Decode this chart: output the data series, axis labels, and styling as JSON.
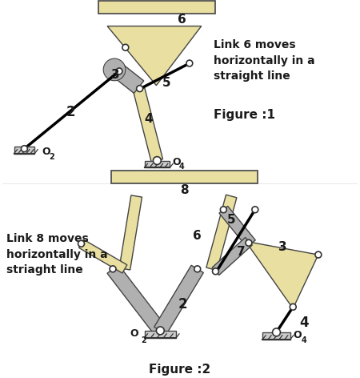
{
  "fig1": {
    "title": "Figure :1",
    "annotation": "Link 6 moves\nhorizontally in a\nstraight line",
    "link_color": "#e8dfa0",
    "gray_color": "#b0b0b0",
    "dark_color": "#1a1a1a",
    "joint_color": "white",
    "joint_edge": "#333333"
  },
  "fig2": {
    "title": "Figure :2",
    "annotation": "Link 8 moves\nhorizontally in a\nstriaght line",
    "link_color": "#e8dfa0",
    "gray_color": "#b0b0b0",
    "dark_color": "#1a1a1a",
    "joint_color": "white",
    "joint_edge": "#333333"
  },
  "background_color": "#ffffff"
}
